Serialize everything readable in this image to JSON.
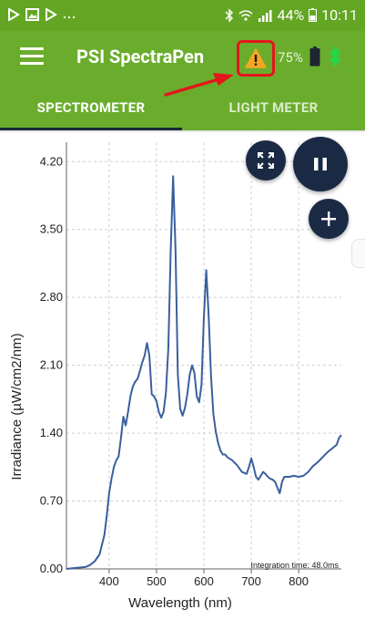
{
  "status_bar": {
    "dots": "...",
    "battery": "44%",
    "time": "10:11"
  },
  "app_bar": {
    "title": "PSI SpectraPen",
    "battery_level": "75%"
  },
  "tabs": [
    {
      "label": "SPECTROMETER",
      "active": true
    },
    {
      "label": "LIGHT METER",
      "active": false
    }
  ],
  "colors": {
    "app_bar": "#6aad2c",
    "status_bar": "#63a623",
    "fab": "#1b2a44",
    "warning_highlight": "#e3161b",
    "line": "#3a5f9e"
  },
  "icons": [
    "menu-icon",
    "warning-icon",
    "battery-icon",
    "bluetooth-icon",
    "expand-icon",
    "pause-icon",
    "plus-icon"
  ],
  "chart_data": {
    "type": "line",
    "title": "",
    "xlabel": "Wavelength (nm)",
    "ylabel": "Irradiance (µW/cm2/nm)",
    "x_ticks": [
      "400",
      "500",
      "600",
      "700",
      "800"
    ],
    "y_ticks": [
      "0.00",
      "0.70",
      "1.40",
      "2.10",
      "2.80",
      "3.50",
      "4.20"
    ],
    "xlim": [
      310,
      890
    ],
    "ylim": [
      0,
      4.4
    ],
    "grid": true,
    "annotation": "Integration time: 48.0ms",
    "series": [
      {
        "x": [
          310,
          330,
          350,
          360,
          370,
          380,
          390,
          395,
          400,
          405,
          410,
          415,
          420,
          425,
          430,
          435,
          440,
          445,
          450,
          455,
          460,
          465,
          470,
          475,
          480,
          485,
          490,
          495,
          500,
          505,
          510,
          515,
          520,
          525,
          530,
          535,
          540,
          545,
          550,
          555,
          560,
          565,
          570,
          575,
          580,
          585,
          590,
          595,
          600,
          605,
          610,
          615,
          620,
          625,
          630,
          635,
          640,
          645,
          650,
          660,
          670,
          680,
          690,
          695,
          700,
          705,
          710,
          715,
          720,
          725,
          730,
          735,
          740,
          745,
          750,
          755,
          760,
          765,
          770,
          780,
          790,
          800,
          810,
          820,
          830,
          840,
          850,
          860,
          870,
          880,
          885,
          890
        ],
        "y": [
          0.0,
          0.01,
          0.02,
          0.04,
          0.08,
          0.15,
          0.35,
          0.55,
          0.78,
          0.93,
          1.05,
          1.12,
          1.16,
          1.35,
          1.57,
          1.48,
          1.62,
          1.78,
          1.88,
          1.93,
          1.96,
          2.04,
          2.13,
          2.2,
          2.33,
          2.2,
          1.8,
          1.78,
          1.73,
          1.62,
          1.56,
          1.62,
          1.82,
          2.27,
          3.3,
          4.05,
          3.3,
          2.0,
          1.65,
          1.58,
          1.66,
          1.8,
          2.0,
          2.1,
          2.02,
          1.78,
          1.72,
          1.9,
          2.6,
          3.08,
          2.62,
          2.0,
          1.6,
          1.42,
          1.3,
          1.22,
          1.18,
          1.18,
          1.15,
          1.12,
          1.07,
          1.0,
          0.98,
          1.05,
          1.14,
          1.05,
          0.95,
          0.92,
          0.96,
          1.0,
          0.98,
          0.95,
          0.93,
          0.92,
          0.9,
          0.84,
          0.78,
          0.9,
          0.95,
          0.95,
          0.96,
          0.95,
          0.96,
          1.0,
          1.06,
          1.1,
          1.15,
          1.2,
          1.24,
          1.28,
          1.35,
          1.38
        ]
      }
    ]
  }
}
